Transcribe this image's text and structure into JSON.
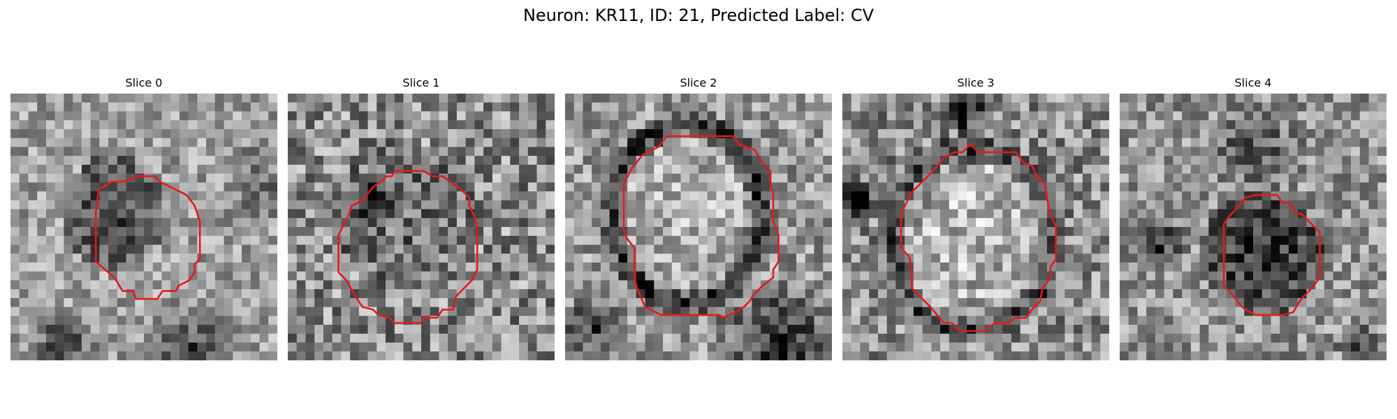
{
  "figure": {
    "title": "Neuron: KR11, ID: 21, Predicted Label: CV"
  },
  "slices": [
    {
      "title": "Slice 0",
      "outline_color": "#e41a1c"
    },
    {
      "title": "Slice 1",
      "outline_color": "#e41a1c"
    },
    {
      "title": "Slice 2",
      "outline_color": "#e41a1c"
    },
    {
      "title": "Slice 3",
      "outline_color": "#e41a1c"
    },
    {
      "title": "Slice 4",
      "outline_color": "#e41a1c"
    }
  ]
}
